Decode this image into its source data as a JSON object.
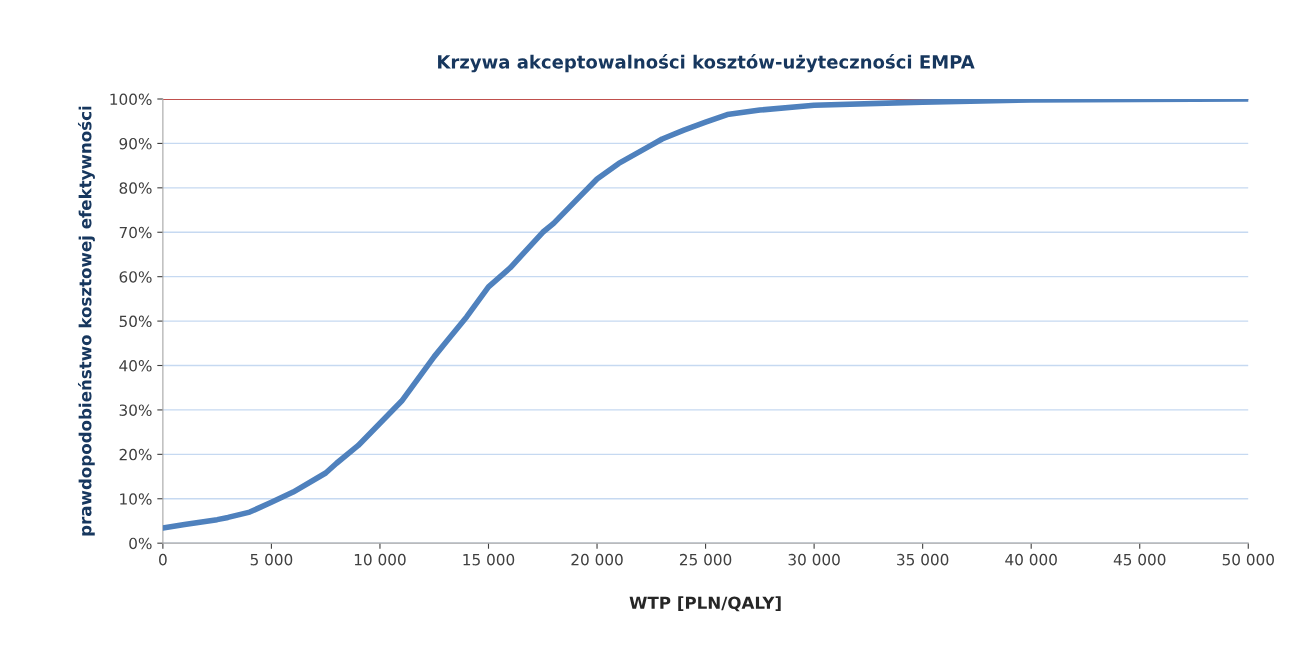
{
  "chart_data": {
    "type": "line",
    "title": "Krzywa akceptowalności kosztów-użyteczności EMPA",
    "xlabel": "WTP [PLN/QALY]",
    "ylabel": "prawdopodobieństwo kosztowej efektywności",
    "x": [
      0,
      1000,
      2500,
      3000,
      4000,
      5000,
      6000,
      7500,
      8000,
      9000,
      10000,
      11000,
      12500,
      13000,
      14000,
      15000,
      16000,
      17500,
      18000,
      19000,
      20000,
      21000,
      22500,
      23000,
      24000,
      25000,
      26000,
      27500,
      30000,
      35000,
      40000,
      50000
    ],
    "series": [
      {
        "color": "#4f81bd",
        "values": [
          3.4,
          4.2,
          5.3,
          5.8,
          7,
          9.2,
          11.5,
          15.8,
          18,
          22,
          27,
          32,
          42,
          45,
          51,
          57.7,
          62,
          70,
          72,
          77,
          82,
          85.5,
          89.6,
          91,
          93,
          94.8,
          96.5,
          97.5,
          98.6,
          99.3,
          99.8,
          100
        ]
      }
    ],
    "xlim": [
      0,
      50000
    ],
    "xticks": [
      0,
      {
        "value": 5000,
        "label": "5 000"
      },
      {
        "value": 10000,
        "label": "10 000"
      },
      {
        "value": 15000,
        "label": "15 000"
      },
      {
        "value": 20000,
        "label": "20 000"
      },
      {
        "value": 25000,
        "label": "25 000"
      },
      {
        "value": 30000,
        "label": "30 000"
      },
      {
        "value": 35000,
        "label": "35 000"
      },
      {
        "value": 40000,
        "label": "40 000"
      },
      {
        "value": 45000,
        "label": "45 000"
      },
      {
        "value": 50000,
        "label": "50 000"
      }
    ],
    "ylim": [
      0,
      100
    ],
    "yticks": [
      {
        "value": 0,
        "label": "0%"
      },
      {
        "value": 10,
        "label": "10%"
      },
      {
        "value": 20,
        "label": "20%"
      },
      {
        "value": 30,
        "label": "30%"
      },
      {
        "value": 40,
        "label": "40%"
      },
      {
        "value": 50,
        "label": "50%"
      },
      {
        "value": 60,
        "label": "60%"
      },
      {
        "value": 70,
        "label": "70%"
      },
      {
        "value": 80,
        "label": "80%"
      },
      {
        "value": 90,
        "label": "90%"
      },
      {
        "value": 100,
        "label": "100%"
      }
    ],
    "ref_lines": [
      {
        "axis": "y",
        "value": 100,
        "color": "#c0504d"
      }
    ],
    "grid": "y",
    "marker": "none",
    "line_style": "solid"
  }
}
